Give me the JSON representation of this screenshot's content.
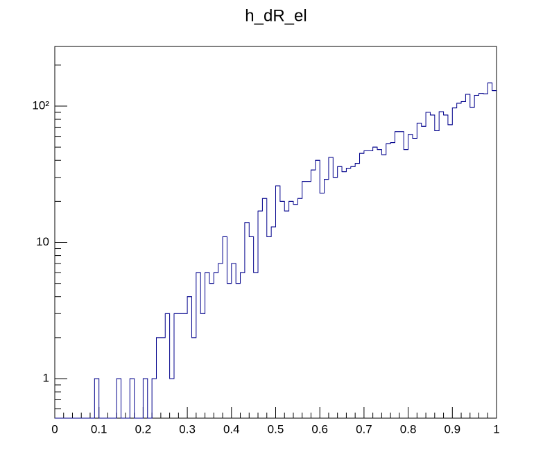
{
  "chart_data": {
    "type": "histogram",
    "title": "h_dR_el",
    "bins": [
      0,
      0.01,
      0.02,
      0.03,
      0.04,
      0.05,
      0.06,
      0.07,
      0.08,
      0.09,
      0.1,
      0.11,
      0.12,
      0.13,
      0.14,
      0.15,
      0.16,
      0.17,
      0.18,
      0.19,
      0.2,
      0.21,
      0.22,
      0.23,
      0.24,
      0.25,
      0.26,
      0.27,
      0.28,
      0.29,
      0.3,
      0.31,
      0.32,
      0.33,
      0.34,
      0.35,
      0.36,
      0.37,
      0.38,
      0.39,
      0.4,
      0.41,
      0.42,
      0.43,
      0.44,
      0.45,
      0.46,
      0.47,
      0.48,
      0.49,
      0.5,
      0.51,
      0.52,
      0.53,
      0.54,
      0.55,
      0.56,
      0.57,
      0.58,
      0.59,
      0.6,
      0.61,
      0.62,
      0.63,
      0.64,
      0.65,
      0.66,
      0.67,
      0.68,
      0.69,
      0.7,
      0.71,
      0.72,
      0.73,
      0.74,
      0.75,
      0.76,
      0.77,
      0.78,
      0.79,
      0.8,
      0.81,
      0.82,
      0.83,
      0.84,
      0.85,
      0.86,
      0.87,
      0.88,
      0.89,
      0.9,
      0.91,
      0.92,
      0.93,
      0.94,
      0.95,
      0.96,
      0.97,
      0.98,
      0.99,
      1
    ],
    "values": [
      0,
      0,
      0,
      0,
      0,
      0,
      0,
      0,
      0,
      1,
      0,
      0,
      0,
      0,
      1,
      0,
      0,
      1,
      0,
      0,
      1,
      0,
      1,
      2,
      2,
      3,
      1,
      3,
      3,
      3,
      4,
      2,
      6,
      3,
      6,
      5,
      6,
      7,
      11,
      5,
      7,
      5,
      6,
      14,
      11,
      6,
      17,
      21,
      11,
      13,
      26,
      20,
      17,
      20,
      19,
      21,
      28,
      28,
      34,
      40,
      23,
      29,
      42,
      30,
      36,
      33,
      35,
      36,
      38,
      45,
      47,
      47,
      50,
      48,
      44,
      53,
      54,
      65,
      65,
      48,
      62,
      58,
      75,
      71,
      90,
      86,
      66,
      91,
      86,
      73,
      97,
      105,
      108,
      122,
      98,
      120,
      124,
      123,
      148,
      130
    ],
    "color": "#00008b",
    "log_y": true,
    "xlim": [
      0,
      1
    ],
    "xticks": [
      0,
      0.1,
      0.2,
      0.3,
      0.4,
      0.5,
      0.6,
      0.7,
      0.8,
      0.9,
      1
    ],
    "ylim": [
      0.513,
      274
    ],
    "yticks": [
      1,
      10,
      {
        "value": 100,
        "label": "10²"
      }
    ]
  }
}
